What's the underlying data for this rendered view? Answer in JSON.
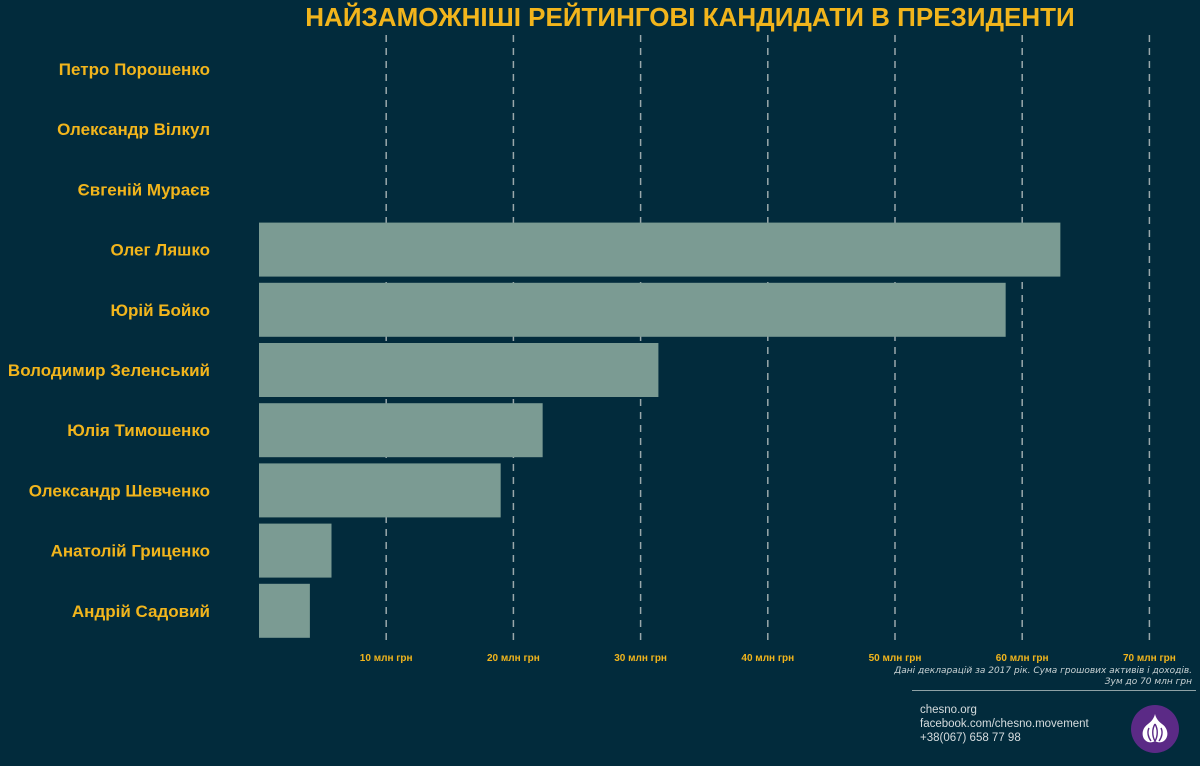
{
  "chart_data": {
    "type": "bar",
    "orientation": "horizontal",
    "title": "НАЙЗАМОЖНІШІ РЕЙТИНГОВІ КАНДИДАТИ В ПРЕЗИДЕНТИ",
    "categories": [
      "Петро Порошенко",
      "Олександр Вілкул",
      "Євгеній Мураєв",
      "Олег Ляшко",
      "Юрій Бойко",
      "Володимир Зеленський",
      "Юлія Тимошенко",
      "Олександр Шевченко",
      "Анатолій Гриценко",
      "Андрій Садовий"
    ],
    "values": [
      null,
      null,
      null,
      63,
      58.7,
      31.4,
      22.3,
      19,
      5.7,
      4
    ],
    "xlim": [
      0,
      70
    ],
    "tick_labels": [
      "10 млн грн",
      "20 млн грн",
      "30 млн грн",
      "40 млн грн",
      "50 млн грн",
      "60 млн грн",
      "70 млн грн"
    ],
    "tick_values": [
      10,
      20,
      30,
      40,
      50,
      60,
      70
    ],
    "grid": true,
    "bar_color": "#7b9b93",
    "text_color": "#f2b51c",
    "background_color": "#022b3c"
  },
  "note": {
    "line1": "Дані декларацій за 2017 рік. Сума грошових активів і доходів.",
    "line2": "Зум до 70 млн грн"
  },
  "footer": {
    "website": "chesno.org",
    "facebook": "facebook.com/chesno.movement",
    "phone": "+38(067) 658 77 98"
  },
  "logo": {
    "icon": "garlic-icon",
    "color": "#5b2a86"
  }
}
